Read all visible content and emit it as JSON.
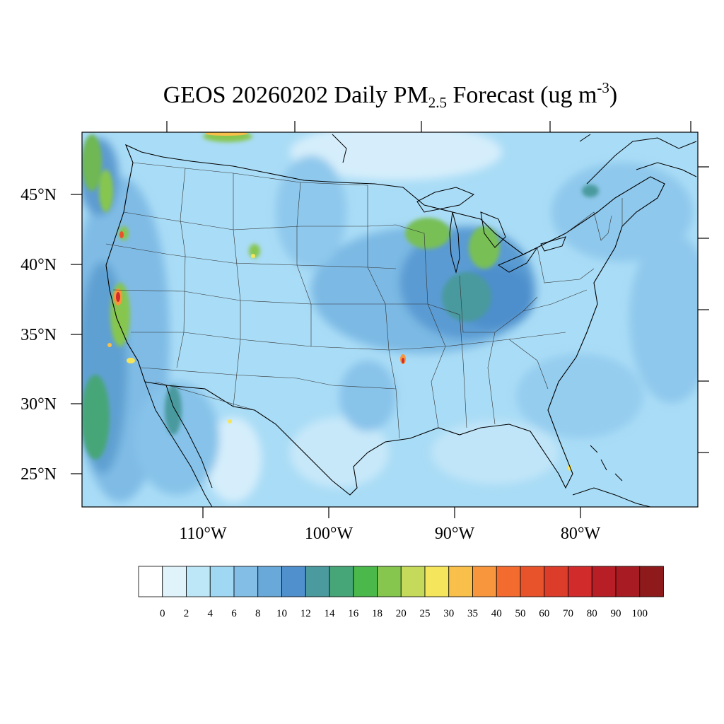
{
  "title": {
    "prefix": "GEOS 20260202 Daily PM",
    "subscript": "2.5",
    "middle": " Forecast (ug m",
    "superscript": "-3",
    "suffix": ")"
  },
  "map": {
    "lat_labels": [
      "45°N",
      "40°N",
      "35°N",
      "30°N",
      "25°N"
    ],
    "lon_labels": [
      "110°W",
      "100°W",
      "90°W",
      "80°W"
    ],
    "background_color": "#a9dcf6"
  },
  "colorbar": {
    "labels": [
      "0",
      "2",
      "4",
      "6",
      "8",
      "10",
      "12",
      "14",
      "16",
      "18",
      "20",
      "25",
      "30",
      "35",
      "40",
      "50",
      "60",
      "70",
      "80",
      "90",
      "100"
    ],
    "colors": [
      "#ffffff",
      "#e0f3fb",
      "#bde6f7",
      "#a0d8f3",
      "#82bee6",
      "#68a9da",
      "#4f90cd",
      "#4a9a9e",
      "#46a678",
      "#4ab84a",
      "#86c64f",
      "#c5d95a",
      "#f5e55c",
      "#f8bf4b",
      "#f7963c",
      "#f46b30",
      "#e8532c",
      "#dc3d2a",
      "#d22b2b",
      "#b81e25",
      "#a81b22",
      "#8f1a1c"
    ]
  }
}
